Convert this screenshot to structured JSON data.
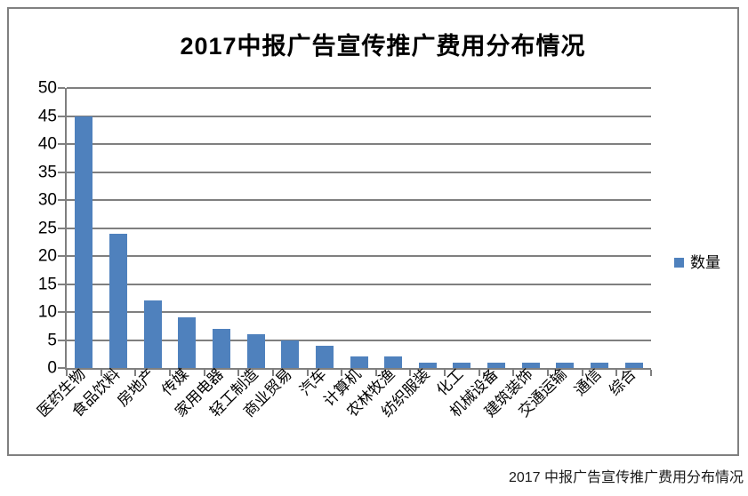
{
  "chart_data": {
    "type": "bar",
    "title": "2017中报广告宣传推广费用分布情况",
    "categories": [
      "医药生物",
      "食品饮料",
      "房地产",
      "传媒",
      "家用电器",
      "轻工制造",
      "商业贸易",
      "汽车",
      "计算机",
      "农林牧渔",
      "纺织服装",
      "化工",
      "机械设备",
      "建筑装饰",
      "交通运输",
      "通信",
      "综合"
    ],
    "series": [
      {
        "name": "数量",
        "values": [
          45,
          24,
          12,
          9,
          7,
          6,
          5,
          4,
          2,
          2,
          1,
          1,
          1,
          1,
          1,
          1,
          1
        ]
      }
    ],
    "xlabel": "",
    "ylabel": "",
    "ylim": [
      0,
      50
    ],
    "ytick_step": 5,
    "grid": "horizontal",
    "legend_position": "right"
  },
  "legend": {
    "label": "数量"
  },
  "caption": "2017 中报广告宣传推广费用分布情况",
  "colors": {
    "bar": "#4F81BD",
    "grid": "#7F7F7F",
    "axis": "#7F7F7F",
    "frame": "#808080",
    "text": "#000000"
  }
}
